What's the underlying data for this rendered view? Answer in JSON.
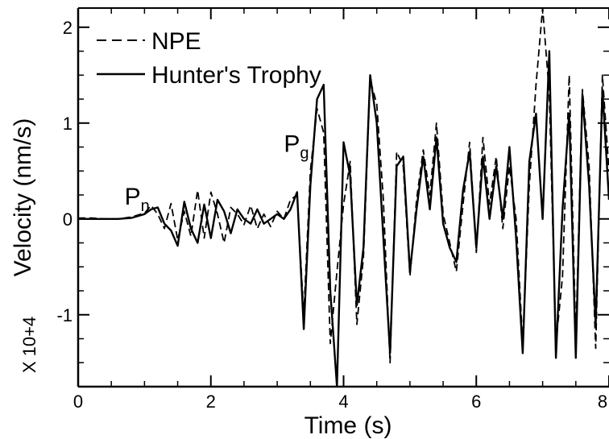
{
  "chart_data": {
    "type": "line",
    "xlabel": "Time (s)",
    "ylabel": "Velocity (nm/s)",
    "y_multiplier_label": "X 10+4",
    "xlim": [
      0,
      8
    ],
    "ylim": [
      -1.75,
      2.2
    ],
    "xticks": [
      0,
      2,
      4,
      6,
      8
    ],
    "xtick_labels": [
      "0",
      "2",
      "4",
      "6",
      "8"
    ],
    "yticks": [
      -1,
      0,
      1,
      2
    ],
    "ytick_labels": [
      "-1",
      "0",
      "1",
      "2"
    ],
    "grid": false,
    "legend_position": "top-left",
    "annotations": [
      {
        "main": "P",
        "sub": "n",
        "x": 0.7,
        "y": 0.1
      },
      {
        "main": "P",
        "sub": "g",
        "x": 3.1,
        "y": 0.65
      }
    ],
    "series": [
      {
        "name": "NPE",
        "style": "dashed",
        "x": [
          0,
          0.2,
          0.4,
          0.6,
          0.8,
          1.0,
          1.1,
          1.2,
          1.3,
          1.4,
          1.5,
          1.6,
          1.7,
          1.8,
          1.9,
          2.0,
          2.1,
          2.2,
          2.3,
          2.4,
          2.5,
          2.6,
          2.7,
          2.8,
          2.9,
          3.0,
          3.1,
          3.2,
          3.3,
          3.4,
          3.5,
          3.6,
          3.7,
          3.8,
          3.9,
          4.0,
          4.1,
          4.2,
          4.3,
          4.4,
          4.5,
          4.6,
          4.7,
          4.8,
          4.9,
          5.0,
          5.1,
          5.2,
          5.3,
          5.4,
          5.5,
          5.6,
          5.7,
          5.8,
          5.9,
          6.0,
          6.1,
          6.2,
          6.3,
          6.4,
          6.5,
          6.6,
          6.7,
          6.8,
          6.9,
          7.0,
          7.1,
          7.2,
          7.3,
          7.4,
          7.5,
          7.6,
          7.7,
          7.8,
          7.9,
          8.0
        ],
        "values": [
          0.01,
          0.01,
          0.0,
          0.0,
          0.02,
          0.06,
          0.14,
          0.05,
          -0.1,
          0.16,
          -0.22,
          0.08,
          -0.18,
          0.3,
          -0.2,
          0.28,
          0.05,
          -0.25,
          0.12,
          0.05,
          -0.06,
          0.14,
          -0.1,
          0.05,
          -0.08,
          0.08,
          0.0,
          0.2,
          0.25,
          -1.0,
          0.5,
          1.15,
          0.9,
          -1.3,
          -0.55,
          0.15,
          0.6,
          -1.1,
          -0.4,
          1.45,
          1.2,
          0.2,
          -1.5,
          0.7,
          0.55,
          -0.6,
          0.2,
          0.72,
          0.25,
          1.0,
          0.05,
          -0.25,
          -0.55,
          0.15,
          0.8,
          -0.35,
          0.85,
          0.15,
          0.65,
          -0.1,
          0.55,
          0.0,
          -1.3,
          0.35,
          1.4,
          2.2,
          1.3,
          -1.3,
          -0.6,
          1.5,
          -1.25,
          1.35,
          0.55,
          -1.35,
          1.5,
          0.5
        ]
      },
      {
        "name": "Hunter's Trophy",
        "style": "solid",
        "x": [
          0,
          0.2,
          0.4,
          0.6,
          0.8,
          1.0,
          1.1,
          1.2,
          1.3,
          1.4,
          1.5,
          1.6,
          1.7,
          1.8,
          1.9,
          2.0,
          2.1,
          2.2,
          2.3,
          2.4,
          2.5,
          2.6,
          2.7,
          2.8,
          2.9,
          3.0,
          3.1,
          3.2,
          3.3,
          3.4,
          3.5,
          3.6,
          3.7,
          3.8,
          3.9,
          4.0,
          4.1,
          4.2,
          4.3,
          4.4,
          4.5,
          4.6,
          4.7,
          4.8,
          4.9,
          5.0,
          5.1,
          5.2,
          5.3,
          5.4,
          5.5,
          5.6,
          5.7,
          5.8,
          5.9,
          6.0,
          6.1,
          6.2,
          6.3,
          6.4,
          6.5,
          6.6,
          6.7,
          6.8,
          6.9,
          7.0,
          7.1,
          7.2,
          7.3,
          7.4,
          7.5,
          7.6,
          7.7,
          7.8,
          7.9,
          8.0
        ],
        "values": [
          0.0,
          0.0,
          0.0,
          0.0,
          0.01,
          0.05,
          0.1,
          0.12,
          -0.05,
          -0.12,
          -0.28,
          0.18,
          -0.1,
          -0.25,
          0.15,
          -0.2,
          0.2,
          0.08,
          -0.15,
          0.1,
          0.0,
          -0.05,
          0.1,
          -0.05,
          0.0,
          0.05,
          0.0,
          0.1,
          0.28,
          -1.15,
          0.35,
          1.25,
          1.4,
          -0.75,
          -1.75,
          0.8,
          0.45,
          -0.9,
          -0.3,
          1.5,
          1.0,
          -0.2,
          -1.4,
          0.55,
          0.65,
          -0.55,
          0.1,
          0.65,
          0.1,
          0.85,
          -0.05,
          -0.3,
          -0.45,
          0.3,
          0.7,
          -0.3,
          0.65,
          0.0,
          0.55,
          0.0,
          0.75,
          -0.2,
          -1.4,
          0.6,
          1.1,
          0.0,
          1.75,
          -1.45,
          0.1,
          1.1,
          -1.45,
          1.3,
          0.35,
          -1.1,
          1.35,
          0.2
        ]
      }
    ]
  }
}
